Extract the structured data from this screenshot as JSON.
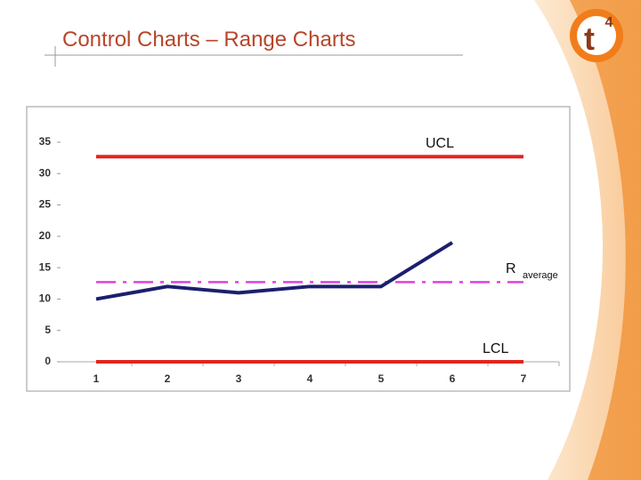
{
  "title": "Control Charts – Range Charts",
  "logo": {
    "letter": "t",
    "superscript": "4"
  },
  "chart_data": {
    "type": "line",
    "categories": [
      "1",
      "2",
      "3",
      "4",
      "5",
      "6",
      "7"
    ],
    "ylim": [
      0,
      35
    ],
    "yticks": [
      0,
      5,
      10,
      15,
      20,
      25,
      30,
      35
    ],
    "series": [
      {
        "name": "UCL",
        "color": "#e3241f",
        "style": "solid",
        "values": [
          32.7,
          32.7,
          32.7,
          32.7,
          32.7,
          32.7,
          32.7
        ]
      },
      {
        "name": "R",
        "name_sub": "average",
        "color": "#e040e0",
        "style": "dashdot",
        "values": [
          12.7,
          12.7,
          12.7,
          12.7,
          12.7,
          12.7,
          12.7
        ]
      },
      {
        "color": "#1b1f6e",
        "style": "solid",
        "values": [
          10,
          12,
          11,
          12,
          12,
          19,
          null
        ]
      },
      {
        "name": "LCL",
        "color": "#e3241f",
        "style": "solid",
        "values": [
          0,
          0,
          0,
          0,
          0,
          0,
          0
        ]
      }
    ]
  }
}
